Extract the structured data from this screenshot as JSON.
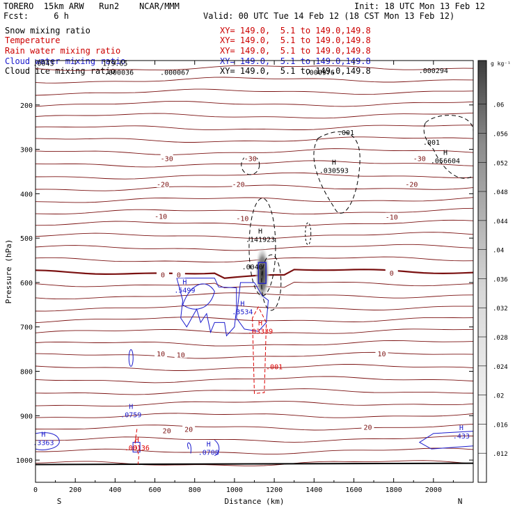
{
  "header": {
    "model": "TORERO  15km ARW   Run2    NCAR/MMM",
    "fcst": "Fcst:     6 h",
    "init": "Init: 18 UTC Mon 13 Feb 12",
    "valid": "Valid: 00 UTC Tue 14 Feb 12 (18 CST Mon 13 Feb 12)"
  },
  "fields": [
    {
      "name": "Snow mixing ratio",
      "xy": "",
      "color": "#000000"
    },
    {
      "name": "Temperature",
      "xy": "XY= 149.0,  5.1 to 149.0,149.8",
      "color": "#cc0000"
    },
    {
      "name": "Rain water mixing ratio",
      "xy": "XY= 149.0,  5.1 to 149.0,149.8",
      "color": "#cc0000"
    },
    {
      "name": "Cloud water mixing ratio",
      "xy": "XY= 149.0,  5.1 to 149.0,149.8",
      "color": "#1a1acc"
    },
    {
      "name": "Cloud ice mixing ratio",
      "xy": "XY= 149.0,  5.1 to 149.0,149.8",
      "color": "#000000"
    }
  ],
  "snow_xy": "XY= 149.0,  5.1 to 149.0,149.8",
  "colors": {
    "temperature": "#7a1010",
    "rain": "#dd0000",
    "cloud_water": "#1a1acc",
    "cloud_ice": "#000000",
    "axis": "#000000"
  },
  "chart_data": {
    "type": "cross-section",
    "xlabel": "Distance (km)",
    "ylabel": "Pressure (hPa)",
    "xlim": [
      0,
      2200
    ],
    "ylim": [
      1050,
      100
    ],
    "x_ticks": [
      "0",
      "200",
      "400",
      "600",
      "800",
      "1000",
      "1200",
      "1400",
      "1600",
      "1800",
      "2000"
    ],
    "y_ticks": [
      "200",
      "300",
      "400",
      "500",
      "600",
      "700",
      "800",
      "900",
      "1000"
    ],
    "x_tick_values": [
      0,
      200,
      400,
      600,
      800,
      1000,
      1200,
      1400,
      1600,
      1800,
      2000
    ],
    "y_tick_values": [
      200,
      300,
      400,
      500,
      600,
      700,
      800,
      900,
      1000
    ],
    "endpoint_labels": {
      "left": "S",
      "right": "N"
    },
    "colorbar": {
      "unit": "g kg⁻¹",
      "ticks": [
        ".012",
        ".016",
        ".02",
        ".024",
        ".028",
        ".032",
        ".036",
        ".04",
        ".044",
        ".048",
        ".052",
        ".056",
        ".06"
      ],
      "tick_values": [
        0.012,
        0.016,
        0.02,
        0.024,
        0.028,
        0.032,
        0.036,
        0.04,
        0.044,
        0.048,
        0.052,
        0.056,
        0.06
      ],
      "range": [
        0.008,
        0.066
      ]
    },
    "temperature_isotherms": [
      {
        "label": "-30",
        "p": 340
      },
      {
        "label": "-20",
        "p": 385
      },
      {
        "label": "-10",
        "p": 455
      },
      {
        "label": "0",
        "p": 575
      },
      {
        "label": "10",
        "p": 755
      },
      {
        "label": "20",
        "p": 930
      }
    ],
    "temperature_label_points": [
      {
        "text": "-30",
        "x": 660,
        "p": 320
      },
      {
        "text": "-30",
        "x": 1080,
        "p": 320
      },
      {
        "text": "-30",
        "x": 1930,
        "p": 320
      },
      {
        "text": "-20",
        "x": 640,
        "p": 378
      },
      {
        "text": "-20",
        "x": 1020,
        "p": 378
      },
      {
        "text": "-20",
        "x": 1890,
        "p": 378
      },
      {
        "text": "-10",
        "x": 630,
        "p": 450
      },
      {
        "text": "-10",
        "x": 1040,
        "p": 455
      },
      {
        "text": "-10",
        "x": 1790,
        "p": 452
      },
      {
        "text": "0",
        "x": 640,
        "p": 582
      },
      {
        "text": "0",
        "x": 720,
        "p": 582
      },
      {
        "text": "0",
        "x": 1790,
        "p": 578
      },
      {
        "text": "10",
        "x": 630,
        "p": 760
      },
      {
        "text": "10",
        "x": 730,
        "p": 762
      },
      {
        "text": "10",
        "x": 1740,
        "p": 760
      },
      {
        "text": "20",
        "x": 660,
        "p": 933
      },
      {
        "text": "20",
        "x": 770,
        "p": 930
      },
      {
        "text": "20",
        "x": 1670,
        "p": 925
      }
    ],
    "top_labels": [
      {
        "text": ".0043",
        "x": 40,
        "p": 112
      },
      {
        "text": "179.65",
        "x": 400,
        "p": 112
      },
      {
        "text": ".000036",
        "x": 420,
        "p": 132
      },
      {
        "text": ".000067",
        "x": 700,
        "p": 132
      },
      {
        "text": ".000976",
        "x": 1430,
        "p": 132
      },
      {
        "text": ".000294",
        "x": 2000,
        "p": 128
      }
    ],
    "highs": [
      {
        "text": "H",
        "value": ".030593",
        "x": 1500,
        "p": 350,
        "color": "#000000"
      },
      {
        "text": "H",
        "value": ".141923",
        "x": 1130,
        "p": 505,
        "color": "#000000"
      },
      {
        "text": "H",
        "value": ".056604",
        "x": 2060,
        "p": 328,
        "color": "#000000"
      },
      {
        "text": "H",
        "value": ".5499",
        "x": 750,
        "p": 620,
        "color": "#1a1acc"
      },
      {
        "text": "H",
        "value": ".3534",
        "x": 1040,
        "p": 668,
        "color": "#1a1acc"
      },
      {
        "text": "H",
        "value": ".03339",
        "x": 1130,
        "p": 712,
        "color": "#dd0000"
      },
      {
        "text": "H",
        "value": ".0759",
        "x": 480,
        "p": 900,
        "color": "#1a1acc"
      },
      {
        "text": "H",
        "value": ".00136",
        "x": 510,
        "p": 975,
        "color": "#dd0000"
      },
      {
        "text": "H",
        "value": ".0708",
        "x": 870,
        "p": 985,
        "color": "#1a1acc"
      },
      {
        "text": "H",
        "value": ".3363",
        "x": 40,
        "p": 963,
        "color": "#1a1acc"
      },
      {
        "text": "H",
        "value": ".433",
        "x": 2140,
        "p": 948,
        "color": "#1a1acc"
      }
    ],
    "contour_labels": [
      {
        "text": ".001",
        "x": 1560,
        "p": 268,
        "color": "#000000"
      },
      {
        "text": ".001",
        "x": 1990,
        "p": 290,
        "color": "#000000"
      },
      {
        "text": ".001",
        "x": 1200,
        "p": 795,
        "color": "#dd0000"
      },
      {
        "text": ".0040",
        "x": 1090,
        "p": 570,
        "color": "#000000"
      }
    ]
  }
}
